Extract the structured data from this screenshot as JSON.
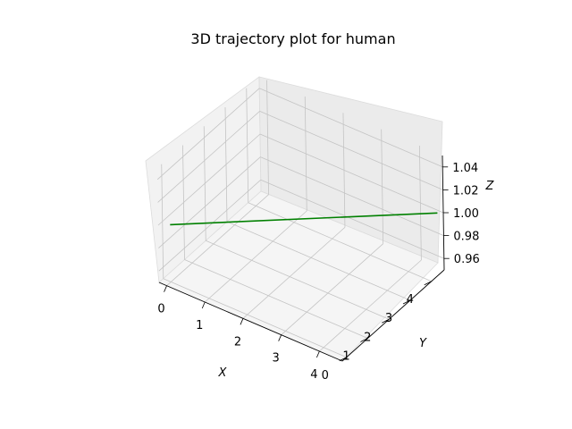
{
  "chart_data": {
    "type": "line",
    "title": "3D trajectory plot for human",
    "xlabel": "X",
    "ylabel": "Y",
    "zlabel": "Z",
    "xticks": [
      "0",
      "1",
      "2",
      "3",
      "4"
    ],
    "yticks": [
      "0",
      "1",
      "2",
      "3",
      "4"
    ],
    "zticks": [
      "0.96",
      "0.98",
      "1.00",
      "1.02",
      "1.04"
    ],
    "xlim": [
      -0.2,
      4.6
    ],
    "ylim": [
      -0.2,
      4.6
    ],
    "zlim": [
      0.95,
      1.05
    ],
    "grid": true,
    "series": [
      {
        "color": "#008000",
        "x": [
          0,
          4.5
        ],
        "y": [
          0,
          4.5
        ],
        "z": [
          1.0,
          1.0
        ]
      }
    ]
  }
}
